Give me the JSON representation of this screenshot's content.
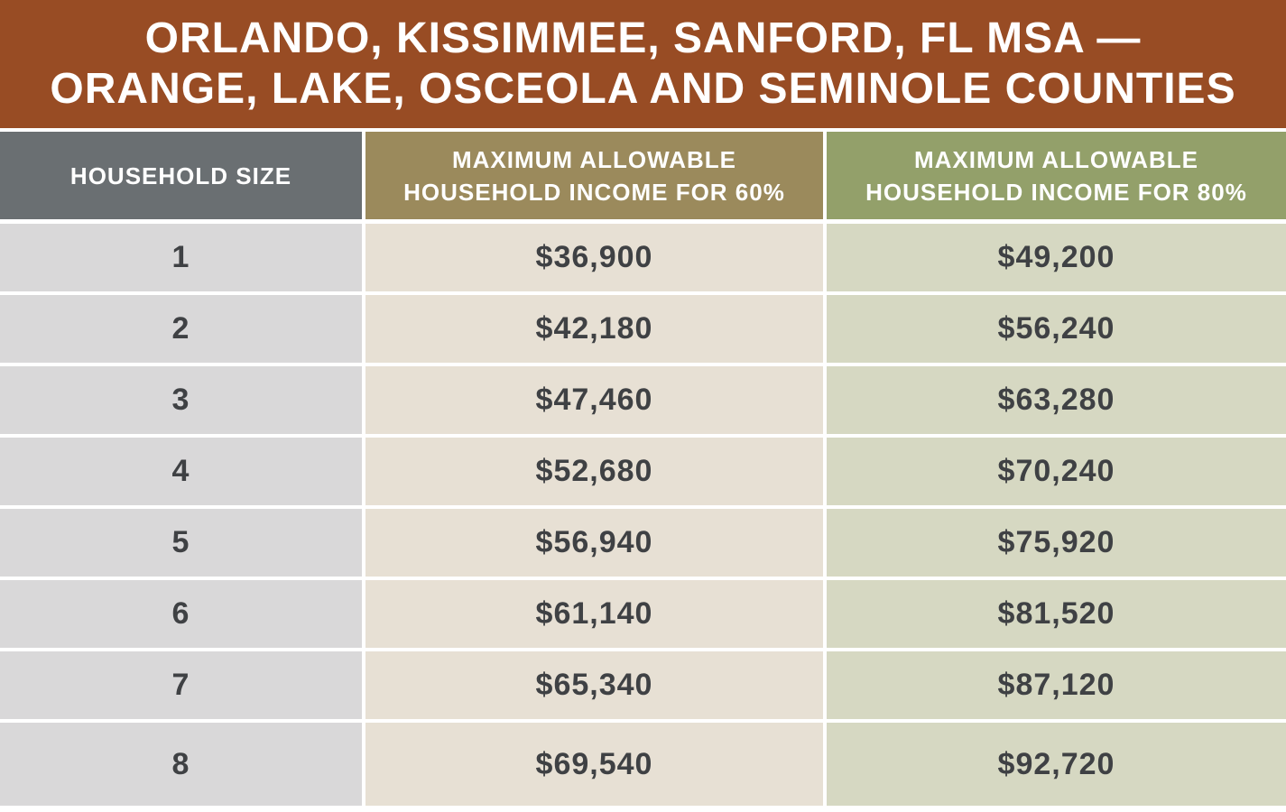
{
  "title": {
    "line1": "ORLANDO, KISSIMMEE, SANFORD, FL MSA —",
    "line2": "ORANGE, LAKE, OSCEOLA AND SEMINOLE COUNTIES"
  },
  "headers": {
    "size": "HOUSEHOLD SIZE",
    "income60_line1": "MAXIMUM ALLOWABLE",
    "income60_line2": "HOUSEHOLD INCOME FOR 60%",
    "income80_line1": "MAXIMUM ALLOWABLE",
    "income80_line2": "HOUSEHOLD INCOME FOR 80%"
  },
  "rows": [
    {
      "size": "1",
      "income60": "$36,900",
      "income80": "$49,200"
    },
    {
      "size": "2",
      "income60": "$42,180",
      "income80": "$56,240"
    },
    {
      "size": "3",
      "income60": "$47,460",
      "income80": "$63,280"
    },
    {
      "size": "4",
      "income60": "$52,680",
      "income80": "$70,240"
    },
    {
      "size": "5",
      "income60": "$56,940",
      "income80": "$75,920"
    },
    {
      "size": "6",
      "income60": "$61,140",
      "income80": "$81,520"
    },
    {
      "size": "7",
      "income60": "$65,340",
      "income80": "$87,120"
    },
    {
      "size": "8",
      "income60": "$69,540",
      "income80": "$92,720"
    }
  ],
  "colors": {
    "title_bg": "#984c24",
    "header_size_bg": "#6a6f72",
    "header_60_bg": "#9b8a5c",
    "header_80_bg": "#93a06a",
    "col_size_bg": "#d9d8d9",
    "col_60_bg": "#e7e0d4",
    "col_80_bg": "#d6d8c2"
  }
}
